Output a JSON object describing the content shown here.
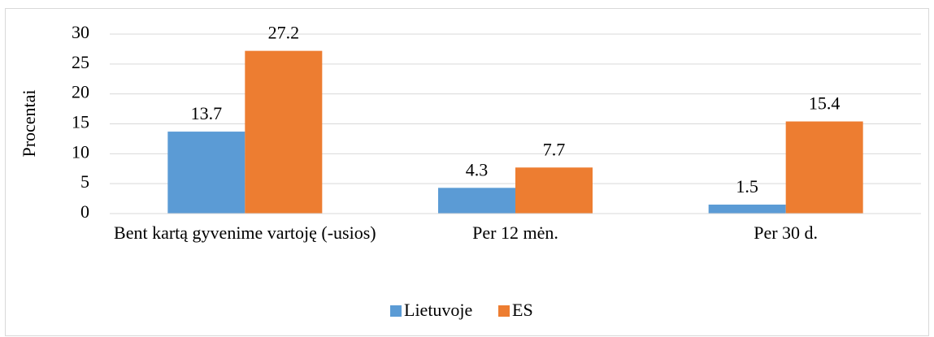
{
  "chart_data": {
    "type": "bar",
    "y_label": "Procentai",
    "categories": [
      "Bent kartą gyvenime vartoję (-usios)",
      "Per 12 mėn.",
      "Per 30 d."
    ],
    "series": [
      {
        "name": "Lietuvoje",
        "color": "#5b9bd5",
        "values": [
          13.7,
          4.3,
          1.5
        ]
      },
      {
        "name": "ES",
        "color": "#ed7d31",
        "values": [
          27.2,
          7.7,
          15.4
        ]
      }
    ],
    "ylim": [
      0,
      30
    ],
    "yticks": [
      0,
      5,
      10,
      15,
      20,
      25,
      30
    ],
    "grid": true,
    "legend": "bottom"
  }
}
